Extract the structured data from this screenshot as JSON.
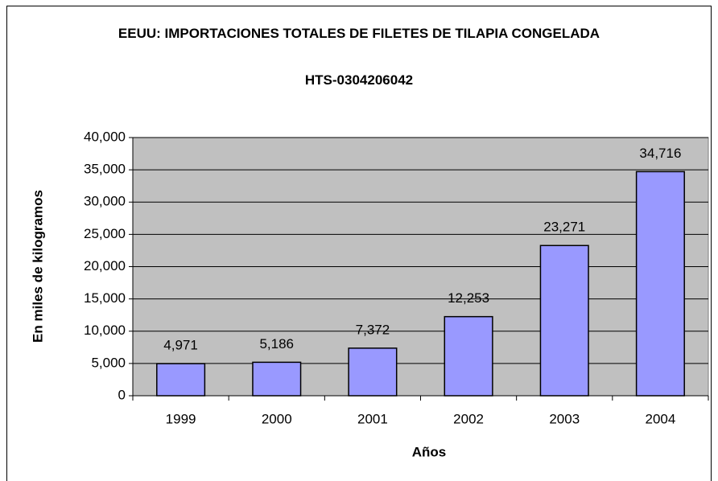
{
  "chart_data": {
    "type": "bar",
    "title": "EEUU: IMPORTACIONES TOTALES DE FILETES DE TILAPIA CONGELADA",
    "subtitle": "HTS-0304206042",
    "x_label": "Años",
    "y_label": "En miles de kilogramos",
    "categories": [
      "1999",
      "2000",
      "2001",
      "2002",
      "2003",
      "2004"
    ],
    "values": [
      4971,
      5186,
      7372,
      12253,
      23271,
      34716
    ],
    "value_labels": [
      "4,971",
      "5,186",
      "7,372",
      "12,253",
      "23,271",
      "34,716"
    ],
    "color": "#9999ff",
    "ylim": [
      0,
      40000
    ],
    "yticks": [
      0,
      {
        "value": 5000,
        "label": "5,000"
      },
      {
        "value": 10000,
        "label": "10,000"
      },
      {
        "value": 15000,
        "label": "15,000"
      },
      {
        "value": 20000,
        "label": "20,000"
      },
      {
        "value": 25000,
        "label": "25,000"
      },
      {
        "value": 30000,
        "label": "30,000"
      },
      {
        "value": 35000,
        "label": "35,000"
      },
      {
        "value": 40000,
        "label": "40,000"
      }
    ],
    "grid": true
  }
}
